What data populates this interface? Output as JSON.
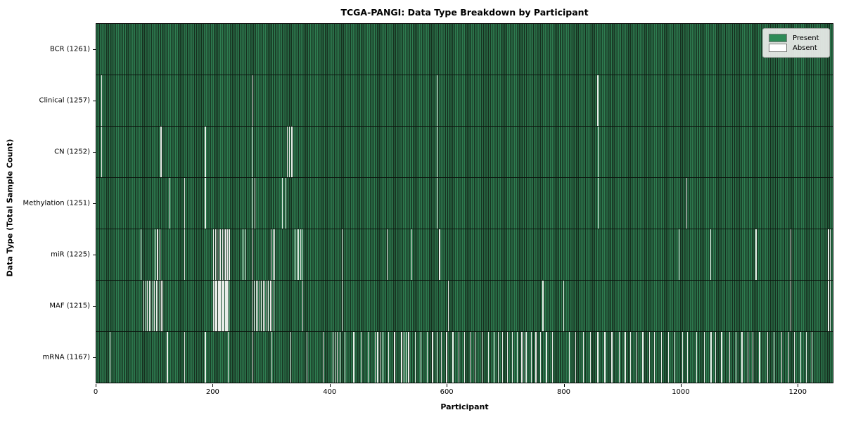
{
  "chart_data": {
    "type": "heatmap",
    "title": "TCGA-PANGI: Data Type Breakdown by Participant",
    "xlabel": "Participant",
    "ylabel": "Data Type (Total Sample Count)",
    "x_ticks": [
      0,
      200,
      400,
      600,
      800,
      1000,
      1200
    ],
    "xlim": [
      0,
      1261
    ],
    "total_participants": 1261,
    "legend": [
      {
        "label": "Present",
        "color": "#2e8b57"
      },
      {
        "label": "Absent",
        "color": "#ffffff"
      }
    ],
    "rows": [
      {
        "id": "bcr",
        "label": "BCR",
        "count": 1261,
        "absent": []
      },
      {
        "id": "clinical",
        "label": "Clinical",
        "count": 1257,
        "absent": [
          8,
          267,
          583,
          858
        ]
      },
      {
        "id": "cn",
        "label": "CN",
        "count": 1252,
        "absent": [
          8,
          110,
          186,
          266,
          326,
          330,
          334,
          583,
          859
        ]
      },
      {
        "id": "methylation",
        "label": "Methylation",
        "count": 1251,
        "absent": [
          125,
          150,
          186,
          266,
          271,
          318,
          324,
          583,
          859,
          1010
        ]
      },
      {
        "id": "mir",
        "label": "miR",
        "count": 1225,
        "absent": [
          76,
          100,
          104,
          108,
          150,
          200,
          203,
          206,
          209,
          212,
          215,
          218,
          221,
          224,
          227,
          250,
          254,
          267,
          299,
          302,
          305,
          340,
          343,
          346,
          349,
          352,
          420,
          497,
          539,
          587,
          997,
          1051,
          1129,
          1189,
          1253,
          1256
        ]
      },
      {
        "id": "maf",
        "label": "MAF",
        "count": 1215,
        "absent": [
          81,
          84,
          87,
          90,
          93,
          96,
          99,
          102,
          105,
          108,
          111,
          113,
          200,
          202,
          204,
          206,
          208,
          210,
          212,
          214,
          216,
          218,
          220,
          222,
          224,
          226,
          267,
          270,
          273,
          276,
          279,
          282,
          285,
          288,
          291,
          294,
          298,
          303,
          353,
          420,
          602,
          764,
          800,
          1189,
          1253,
          1256
        ]
      },
      {
        "id": "mrna",
        "label": "mRNA",
        "count": 1167,
        "absent": [
          23,
          121,
          150,
          186,
          225,
          267,
          300,
          332,
          360,
          388,
          405,
          408,
          412,
          417,
          425,
          440,
          453,
          465,
          477,
          481,
          485,
          490,
          500,
          510,
          522,
          526,
          530,
          534,
          545,
          555,
          566,
          575,
          583,
          590,
          599,
          610,
          620,
          630,
          639,
          648,
          660,
          671,
          680,
          688,
          695,
          703,
          712,
          720,
          728,
          733,
          736,
          744,
          752,
          760,
          770,
          780,
          809,
          820,
          833,
          845,
          858,
          870,
          882,
          895,
          905,
          914,
          925,
          935,
          947,
          955,
          967,
          979,
          990,
          1003,
          1012,
          1027,
          1040,
          1052,
          1060,
          1070,
          1084,
          1095,
          1105,
          1115,
          1124,
          1135,
          1149,
          1160,
          1173,
          1185,
          1195,
          1205,
          1215,
          1225
        ]
      }
    ],
    "colors": {
      "present": "#2e8b57",
      "absent": "#ffffff",
      "bar_fill_light": "#2e7c50",
      "bar_edge_dark": "#16301f",
      "absent_line": "#e9ece8",
      "legend_bg": "#eaecea",
      "spine": "#000000"
    },
    "grid": false,
    "legend_position": "upper right"
  }
}
